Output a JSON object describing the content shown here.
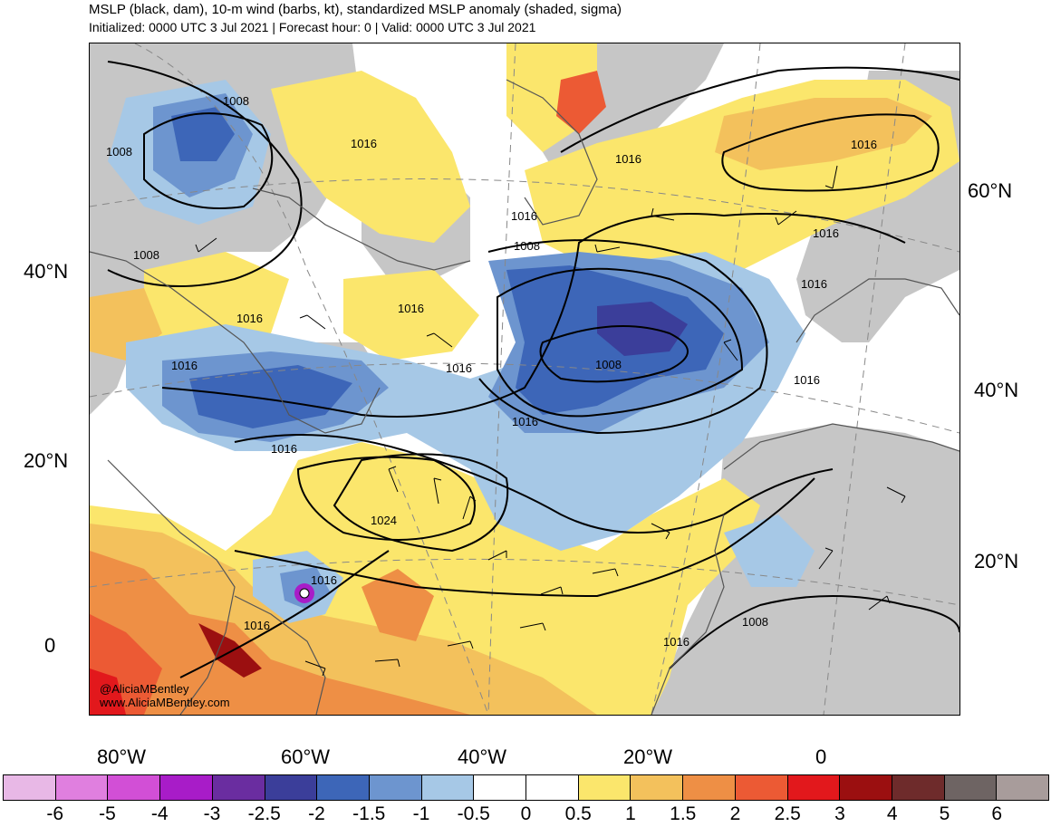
{
  "title": "MSLP (black, dam), 10-m wind (barbs, kt), standardized MSLP anomaly (shaded, sigma)",
  "subtitle": "Initialized: 0000 UTC 3 Jul 2021 | Forecast hour: 0 | Valid: 0000 UTC 3 Jul 2021",
  "credit": {
    "handle": "@AliciaMBentley",
    "website": "www.AliciaMBentley.com"
  },
  "lat_labels_left": [
    "40°N",
    "20°N",
    "0"
  ],
  "lat_labels_right": [
    "60°N",
    "40°N",
    "20°N"
  ],
  "lon_labels": [
    "80°W",
    "60°W",
    "40°W",
    "20°W",
    "0"
  ],
  "colorbar": {
    "labels": [
      "-6",
      "-5",
      "-4",
      "-3",
      "-2.5",
      "-2",
      "-1.5",
      "-1",
      "-0.5",
      "0",
      "0.5",
      "1",
      "1.5",
      "2",
      "2.5",
      "3",
      "4",
      "5",
      "6"
    ],
    "colors": [
      "#e8b8e6",
      "#e07fdf",
      "#d24fd6",
      "#a81cc8",
      "#6a2da0",
      "#3b3e9a",
      "#3d66b8",
      "#6d95cf",
      "#a6c8e6",
      "#ffffff",
      "#ffffff",
      "#fbe66c",
      "#f3c15c",
      "#ee8f45",
      "#ec5a34",
      "#e2181c",
      "#9b0f10",
      "#6e2b2b",
      "#6e6463",
      "#a89c9b"
    ]
  },
  "isobar_labels": [
    "1008",
    "1008",
    "1008",
    "1016",
    "1016",
    "1016",
    "1016",
    "1016",
    "1016",
    "1016",
    "1008",
    "1016",
    "1016",
    "1008",
    "1016",
    "1016",
    "1016",
    "1024",
    "1016",
    "1016",
    "1016",
    "1008",
    "1016"
  ],
  "colors": {
    "land_gray": "#c6c6c6",
    "contour": "#000000",
    "coast": "#555555",
    "grid": "#888888"
  }
}
